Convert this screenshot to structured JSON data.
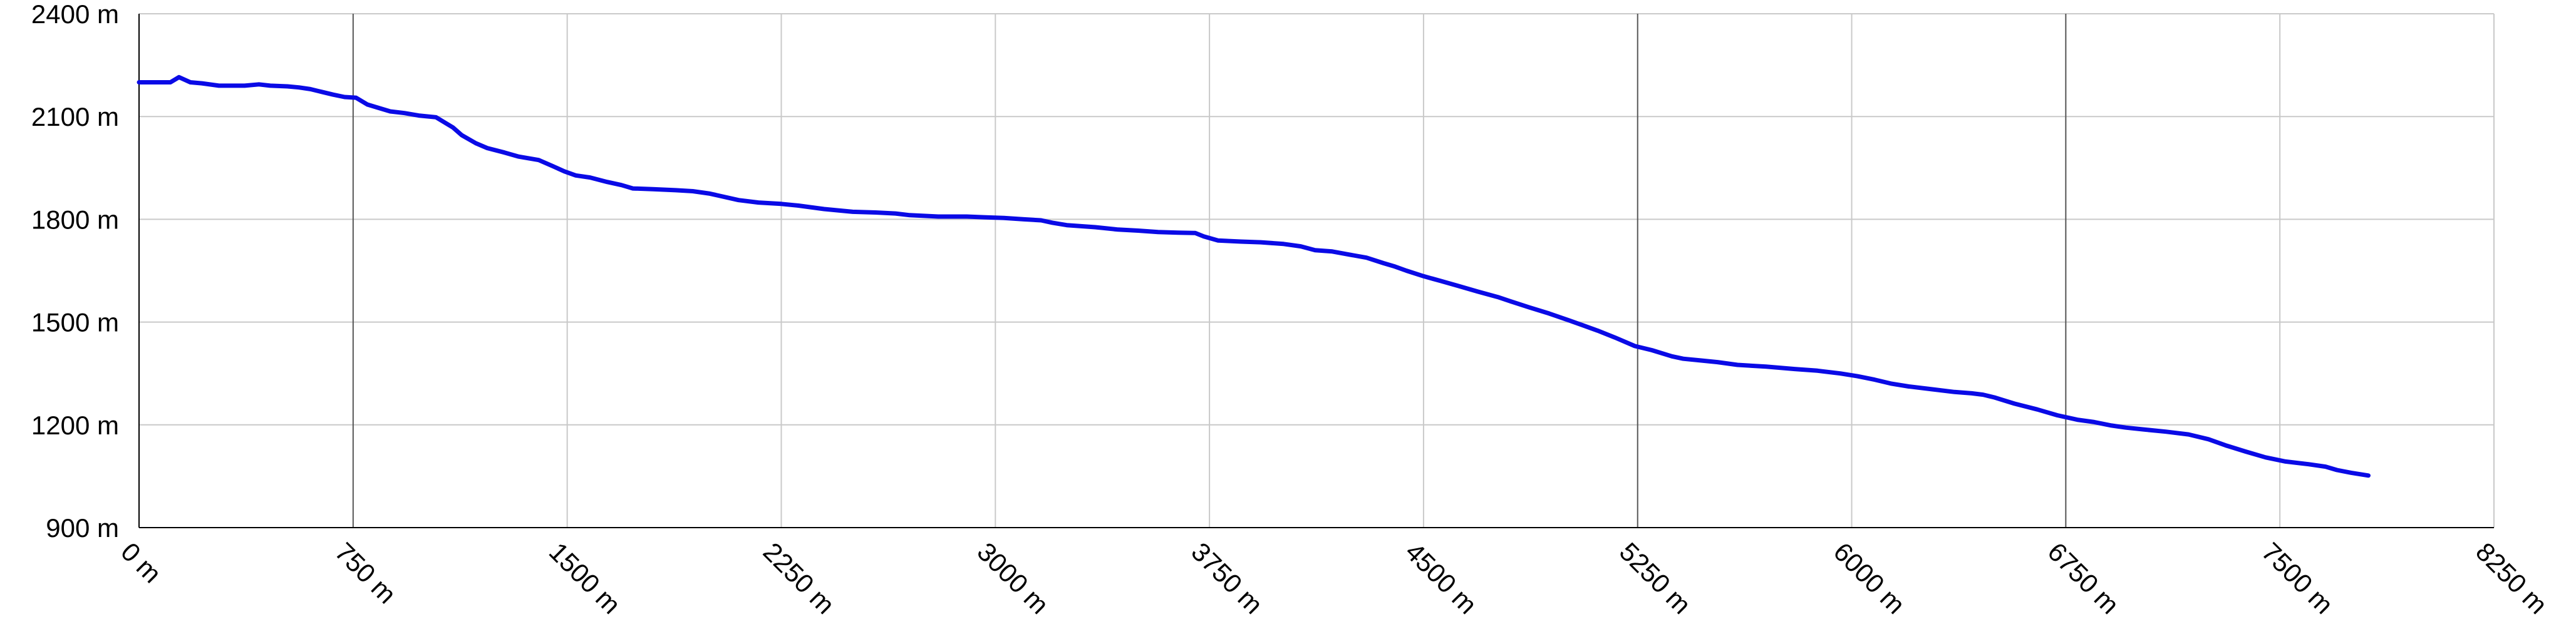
{
  "chart_data": {
    "type": "line",
    "title": "",
    "xlabel": "",
    "ylabel": "",
    "xlim": [
      0,
      8250
    ],
    "ylim": [
      900,
      2400
    ],
    "x_ticks": [
      0,
      750,
      1500,
      2250,
      3000,
      3750,
      4500,
      5250,
      6000,
      6750,
      7500,
      8250
    ],
    "x_tick_labels": [
      "0 m",
      "750 m",
      "1500 m",
      "2250 m",
      "3000 m",
      "3750 m",
      "4500 m",
      "5250 m",
      "6000 m",
      "6750 m",
      "7500 m",
      "8250 m"
    ],
    "y_ticks": [
      900,
      1200,
      1500,
      1800,
      2100,
      2400
    ],
    "y_tick_labels": [
      "900 m",
      "1200 m",
      "1500 m",
      "1800 m",
      "2100 m",
      "2400 m"
    ],
    "dark_gridlines_x": [
      750,
      5250,
      6750
    ],
    "grid": true,
    "legend": "none",
    "colors": {
      "line": "#0a0ae6",
      "grid": "#c9c9c9",
      "grid_major": "#555555",
      "axis": "#000000"
    },
    "series": [
      {
        "color": "#0a0ae6",
        "x": [
          0,
          80,
          110,
          140,
          180,
          220,
          280,
          320,
          370,
          420,
          460,
          520,
          560,
          600,
          640,
          680,
          720,
          760,
          800,
          840,
          880,
          930,
          980,
          1040,
          1100,
          1130,
          1180,
          1220,
          1280,
          1330,
          1400,
          1450,
          1490,
          1530,
          1580,
          1640,
          1690,
          1730,
          1800,
          1880,
          1940,
          2000,
          2100,
          2170,
          2250,
          2310,
          2400,
          2500,
          2580,
          2650,
          2700,
          2800,
          2900,
          2960,
          3030,
          3100,
          3160,
          3200,
          3250,
          3350,
          3430,
          3500,
          3570,
          3640,
          3700,
          3730,
          3780,
          3860,
          3930,
          4010,
          4070,
          4120,
          4180,
          4240,
          4300,
          4360,
          4400,
          4440,
          4500,
          4560,
          4620,
          4690,
          4760,
          4800,
          4870,
          4940,
          5010,
          5060,
          5110,
          5170,
          5240,
          5300,
          5370,
          5410,
          5470,
          5530,
          5600,
          5700,
          5800,
          5880,
          5960,
          6020,
          6080,
          6140,
          6200,
          6280,
          6360,
          6420,
          6460,
          6500,
          6570,
          6650,
          6720,
          6790,
          6850,
          6910,
          6960,
          7030,
          7100,
          7180,
          7250,
          7310,
          7380,
          7450,
          7520,
          7600,
          7660,
          7700,
          7750,
          7810
        ],
        "y": [
          2200,
          2200,
          2200,
          2215,
          2200,
          2197,
          2190,
          2190,
          2190,
          2194,
          2190,
          2188,
          2185,
          2180,
          2172,
          2164,
          2157,
          2155,
          2135,
          2125,
          2115,
          2110,
          2103,
          2098,
          2068,
          2046,
          2022,
          2008,
          1995,
          1983,
          1973,
          1955,
          1940,
          1928,
          1922,
          1909,
          1900,
          1890,
          1888,
          1885,
          1882,
          1875,
          1856,
          1849,
          1845,
          1840,
          1830,
          1822,
          1820,
          1817,
          1812,
          1808,
          1808,
          1806,
          1804,
          1800,
          1797,
          1790,
          1783,
          1777,
          1770,
          1767,
          1763,
          1761,
          1760,
          1750,
          1738,
          1735,
          1733,
          1728,
          1721,
          1710,
          1706,
          1697,
          1688,
          1672,
          1662,
          1650,
          1634,
          1620,
          1606,
          1589,
          1573,
          1562,
          1543,
          1525,
          1505,
          1490,
          1475,
          1455,
          1430,
          1418,
          1400,
          1393,
          1388,
          1383,
          1375,
          1370,
          1363,
          1358,
          1350,
          1342,
          1332,
          1320,
          1312,
          1304,
          1296,
          1292,
          1288,
          1280,
          1262,
          1245,
          1228,
          1215,
          1208,
          1198,
          1192,
          1186,
          1180,
          1172,
          1158,
          1140,
          1122,
          1105,
          1093,
          1085,
          1078,
          1068,
          1060,
          1052
        ]
      }
    ]
  }
}
